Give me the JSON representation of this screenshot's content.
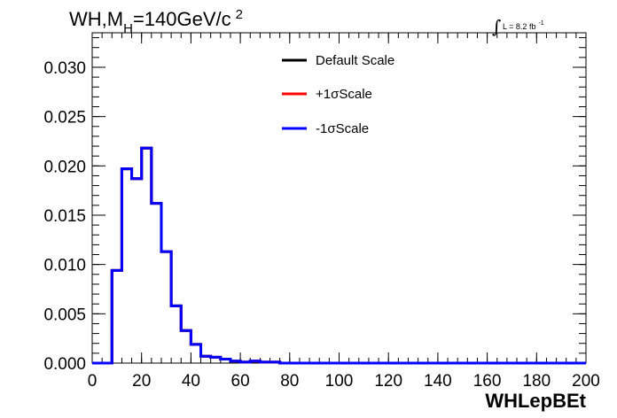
{
  "chart_data": {
    "type": "line",
    "step": true,
    "title": "WH,M",
    "title_sub": "H",
    "title_rest": "=140GeV/c",
    "title_sup": "2",
    "lumi": {
      "integral_symbol": "∫",
      "text": "L = 8.2 fb",
      "sup": "-1"
    },
    "xlabel": "WHLepBEt",
    "ylabel": "",
    "xlim": [
      0,
      200
    ],
    "ylim": [
      0,
      0.0335
    ],
    "xticks": [
      0,
      20,
      40,
      60,
      80,
      100,
      120,
      140,
      160,
      180,
      200
    ],
    "xtick_labels": [
      "0",
      "20",
      "40",
      "60",
      "80",
      "100",
      "120",
      "140",
      "160",
      "180",
      "200"
    ],
    "yticks": [
      0,
      0.005,
      0.01,
      0.015,
      0.02,
      0.025,
      0.03
    ],
    "ytick_labels": [
      "0.000",
      "0.005",
      "0.010",
      "0.015",
      "0.020",
      "0.025",
      "0.030"
    ],
    "bin_edges": [
      0,
      4,
      8,
      12,
      16,
      20,
      24,
      28,
      32,
      36,
      40,
      44,
      48,
      52,
      56,
      60,
      64,
      68,
      72,
      76,
      200
    ],
    "legend_position": "top-center",
    "series": [
      {
        "name": "Default Scale",
        "color": "#000000",
        "values": [
          0,
          0,
          0.0094,
          0.0197,
          0.0187,
          0.0218,
          0.0162,
          0.0113,
          0.0058,
          0.0033,
          0.0019,
          0.0007,
          0.0006,
          0.0004,
          0.0002,
          0.0001,
          0.0002,
          0.0001,
          0.0001,
          0,
          0
        ]
      },
      {
        "name": "+1σScale",
        "color": "#ff0000",
        "values": [
          0,
          0,
          0.0094,
          0.0197,
          0.0187,
          0.0218,
          0.0162,
          0.0113,
          0.0058,
          0.0033,
          0.0019,
          0.0007,
          0.0006,
          0.0004,
          0.0002,
          0.0001,
          0.0002,
          0.0001,
          0.0001,
          0,
          0
        ]
      },
      {
        "name": "-1σScale",
        "color": "#0000ff",
        "values": [
          0,
          0,
          0.0094,
          0.0197,
          0.0187,
          0.0218,
          0.0162,
          0.0113,
          0.0058,
          0.0033,
          0.0019,
          0.0007,
          0.0006,
          0.0004,
          0.0002,
          0.0001,
          0.0002,
          0.0001,
          0.0001,
          0,
          0
        ]
      }
    ]
  }
}
